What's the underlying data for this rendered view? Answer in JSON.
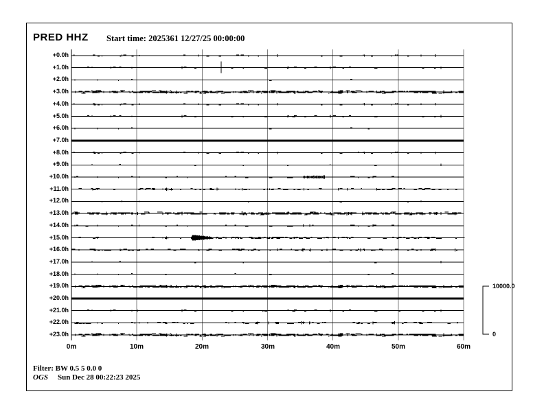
{
  "header": {
    "station": "PRED HHZ",
    "start_time": "Start time: 2025361 12/27/25 00:00:00"
  },
  "footer": {
    "filter": "Filter: BW 0.5 5 0.0 0",
    "agency": "OGS",
    "timestamp": "Sun Dec 28 00:22:23 2025"
  },
  "chart_data": {
    "type": "line",
    "subtype": "helicorder",
    "title": "PRED HHZ",
    "station": "PRED",
    "channel": "HHZ",
    "start_time": "2025361 12/27/25 00:00:00",
    "minutes_per_line": 60,
    "x_tick_labels": [
      "0m",
      "10m",
      "20m",
      "30m",
      "40m",
      "50m",
      "60m"
    ],
    "amplitude_scale": {
      "top_label": "10000.0",
      "bottom_label": "0"
    },
    "rows": [
      {
        "label": "+0.0h",
        "activity": "sparse"
      },
      {
        "label": "+1.0h",
        "activity": "sparse"
      },
      {
        "label": "+2.0h",
        "activity": "light"
      },
      {
        "label": "+3.0h",
        "activity": "dense"
      },
      {
        "label": "+4.0h",
        "activity": "sparse"
      },
      {
        "label": "+5.0h",
        "activity": "sparse"
      },
      {
        "label": "+6.0h",
        "activity": "light"
      },
      {
        "label": "+7.0h",
        "activity": "solid"
      },
      {
        "label": "+8.0h",
        "activity": "sparse"
      },
      {
        "label": "+9.0h",
        "activity": "light"
      },
      {
        "label": "+10.0h",
        "activity": "sparse"
      },
      {
        "label": "+11.0h",
        "activity": "moderate"
      },
      {
        "label": "+12.0h",
        "activity": "light"
      },
      {
        "label": "+13.0h",
        "activity": "dense"
      },
      {
        "label": "+14.0h",
        "activity": "sparse"
      },
      {
        "label": "+15.0h",
        "activity": "sparse"
      },
      {
        "label": "+16.0h",
        "activity": "moderate"
      },
      {
        "label": "+17.0h",
        "activity": "light"
      },
      {
        "label": "+18.0h",
        "activity": "light"
      },
      {
        "label": "+19.0h",
        "activity": "dense"
      },
      {
        "label": "+20.0h",
        "activity": "solid"
      },
      {
        "label": "+21.0h",
        "activity": "sparse"
      },
      {
        "label": "+22.0h",
        "activity": "moderate"
      },
      {
        "label": "+23.0h",
        "activity": "dense"
      }
    ],
    "events": [
      {
        "row_index": 1,
        "type": "spike",
        "time_frac": 0.382,
        "description": "single large vertical spike"
      },
      {
        "row_index": 10,
        "type": "small-burst",
        "start_frac": 0.594,
        "end_frac": 0.645,
        "description": "small tremor burst before 40m"
      },
      {
        "row_index": 15,
        "type": "quake",
        "start_frac": 0.305,
        "description": "event onset with long decaying coda"
      }
    ],
    "colors": {
      "trace": "#000000",
      "grid": "#7f7f7f",
      "frame": "#000000",
      "background": "#ffffff"
    }
  }
}
